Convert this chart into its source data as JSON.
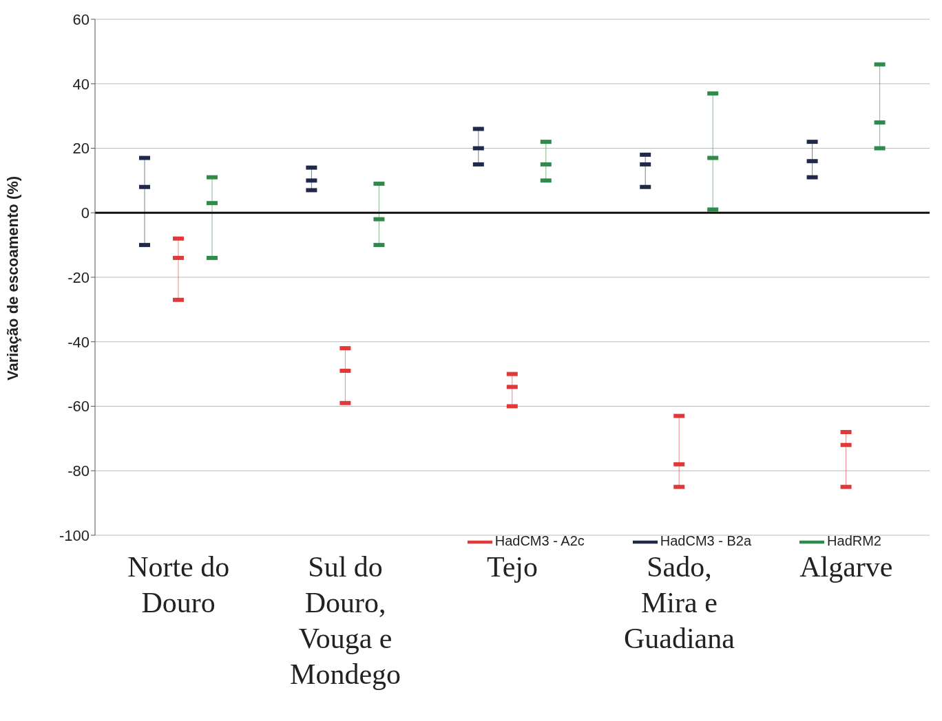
{
  "chart_data": {
    "type": "box",
    "ylabel": "Variação de escoamento (%)",
    "categories": [
      "Norte do Douro",
      "Sul do Douro, Vouga e Mondego",
      "Tejo",
      "Sado, Mira e Guadiana",
      "Algarve"
    ],
    "series": [
      {
        "name": "HadCM3 - B2a",
        "color": "#1f2a4a",
        "boxes": [
          {
            "low": -10,
            "q1": 8,
            "median": 8,
            "q3": 8,
            "high": 17
          },
          {
            "low": 7,
            "q1": 10,
            "median": 10,
            "q3": 10,
            "high": 14
          },
          {
            "low": 15,
            "q1": 20,
            "median": 20,
            "q3": 20,
            "high": 26
          },
          {
            "low": 8,
            "q1": 15,
            "median": 15,
            "q3": 15,
            "high": 18
          },
          {
            "low": 11,
            "q1": 16,
            "median": 16,
            "q3": 16,
            "high": 22
          }
        ]
      },
      {
        "name": "HadCM3 - A2c",
        "color": "#e0393a",
        "boxes": [
          {
            "low": -27,
            "q1": -14,
            "median": -14,
            "q3": -14,
            "high": -8
          },
          {
            "low": -59,
            "q1": -49,
            "median": -49,
            "q3": -49,
            "high": -42
          },
          {
            "low": -60,
            "q1": -54,
            "median": -54,
            "q3": -54,
            "high": -50
          },
          {
            "low": -85,
            "q1": -78,
            "median": -78,
            "q3": -78,
            "high": -63
          },
          {
            "low": -85,
            "q1": -72,
            "median": -72,
            "q3": -72,
            "high": -68
          }
        ]
      },
      {
        "name": "HadRM2",
        "color": "#2e8b4a",
        "boxes": [
          {
            "low": -14,
            "q1": 3,
            "median": 3,
            "q3": 3,
            "high": 11
          },
          {
            "low": -10,
            "q1": -2,
            "median": -2,
            "q3": -2,
            "high": 9
          },
          {
            "low": 10,
            "q1": 15,
            "median": 15,
            "q3": 15,
            "high": 22
          },
          {
            "low": 1,
            "q1": 17,
            "median": 17,
            "q3": 17,
            "high": 37
          },
          {
            "low": 20,
            "q1": 28,
            "median": 28,
            "q3": 28,
            "high": 46
          }
        ]
      }
    ],
    "ylim": [
      -100,
      60
    ],
    "yticks": [
      -100,
      -80,
      -60,
      -40,
      -20,
      0,
      20,
      40,
      60
    ],
    "grid": "y",
    "legend": "bottom right"
  }
}
